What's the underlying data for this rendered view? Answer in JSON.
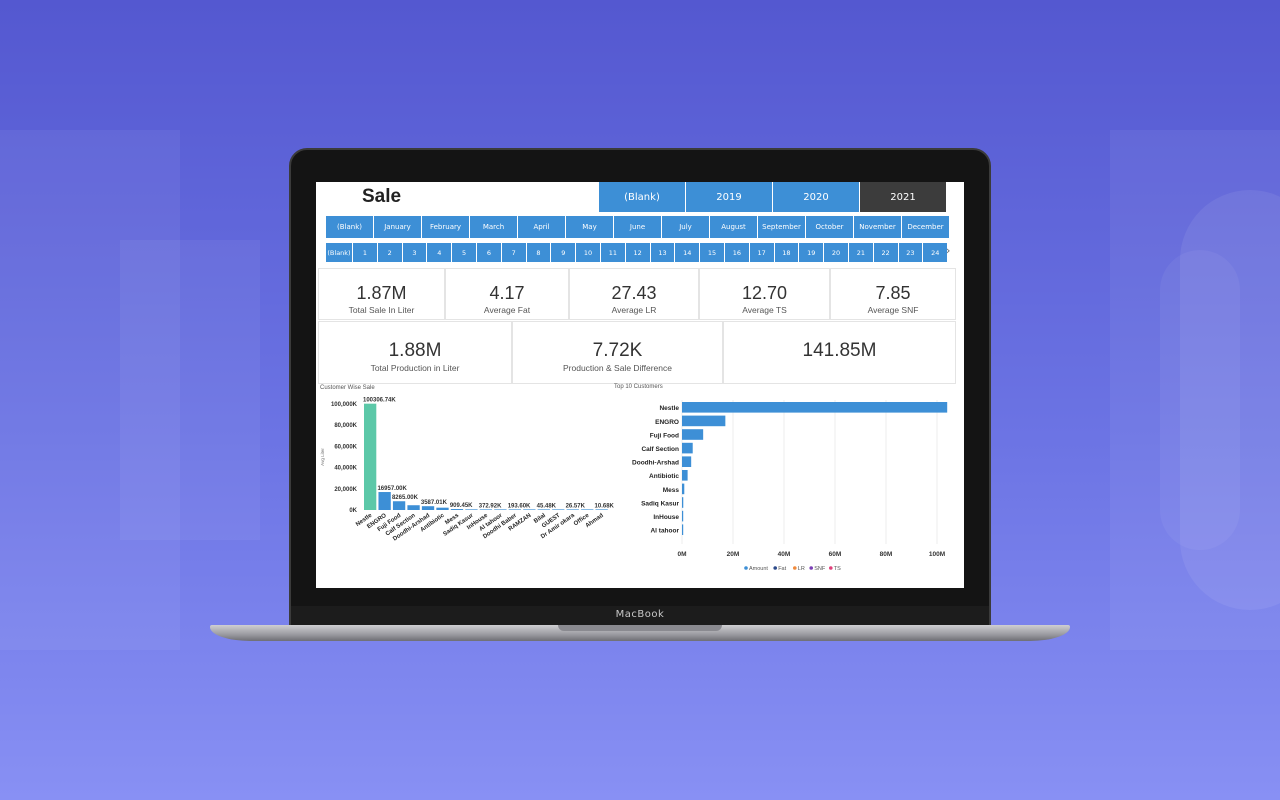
{
  "device": {
    "brand": "MacBook"
  },
  "dashboard": {
    "title": "Sale",
    "years": [
      "(Blank)",
      "2019",
      "2020",
      "2021"
    ],
    "active_year": "2021",
    "months": [
      "(Blank)",
      "January",
      "February",
      "March",
      "April",
      "May",
      "June",
      "July",
      "August",
      "September",
      "October",
      "November",
      "December"
    ],
    "days": [
      "(Blank)",
      "1",
      "2",
      "3",
      "4",
      "5",
      "6",
      "7",
      "8",
      "9",
      "10",
      "11",
      "12",
      "13",
      "14",
      "15",
      "16",
      "17",
      "18",
      "19",
      "20",
      "21",
      "22",
      "23",
      "24"
    ],
    "kpis_top": [
      {
        "value": "1.87M",
        "label": "Total Sale In Liter"
      },
      {
        "value": "4.17",
        "label": "Average Fat"
      },
      {
        "value": "27.43",
        "label": "Average LR"
      },
      {
        "value": "12.70",
        "label": "Average TS"
      },
      {
        "value": "7.85",
        "label": "Average SNF"
      }
    ],
    "kpis_bottom": [
      {
        "value": "1.88M",
        "label": "Total Production in Liter"
      },
      {
        "value": "7.72K",
        "label": "Production & Sale Difference"
      },
      {
        "value": "141.85M",
        "label": ""
      }
    ]
  },
  "chart_data": [
    {
      "type": "bar",
      "title": "Customer Wise Sale",
      "ylabel": "Avg Liter",
      "ylim": [
        0,
        100000
      ],
      "yticks": [
        "0K",
        "20,000K",
        "40,000K",
        "60,000K",
        "80,000K",
        "100,000K"
      ],
      "categories": [
        "Nestle",
        "ENGRO",
        "Fuji Food",
        "Calf Section",
        "Doodhi-Arshad",
        "Antibiotic",
        "Mess",
        "Sadiq Kasur",
        "InHouse",
        "Al tahoor",
        "Doodhi Baber",
        "RAMZAN",
        "Bilal",
        "GUEST",
        "Dr Amir okara",
        "Office",
        "Ahmad"
      ],
      "values": [
        100306.74,
        16957.0,
        8265.0,
        4500,
        3587.01,
        2200,
        909.45,
        600,
        372.92,
        300,
        193.6,
        100,
        45.48,
        40,
        26.57,
        15,
        10.68
      ],
      "data_labels": [
        "100306.74K",
        "16957.00K",
        "8265.00K",
        "",
        "3587.01K",
        "",
        "909.45K",
        "",
        "372.92K",
        "",
        "193.60K",
        "",
        "45.48K",
        "",
        "26.57K",
        "",
        "10.68K"
      ],
      "colors": [
        "#5cc8a8",
        "#3d8fd6"
      ]
    },
    {
      "type": "bar",
      "orientation": "horizontal",
      "title": "Top 10 Customers",
      "categories": [
        "Nestle",
        "ENGRO",
        "Fuji Food",
        "Calf Section",
        "Doodhi-Arshad",
        "Antibiotic",
        "Mess",
        "Sadiq Kasur",
        "InHouse",
        "Al tahoor"
      ],
      "values": [
        104,
        17,
        8.3,
        4.2,
        3.6,
        2.2,
        0.9,
        0.5,
        0.4,
        0.3
      ],
      "xticks": [
        "0M",
        "20M",
        "40M",
        "60M",
        "80M",
        "100M"
      ],
      "xlim": [
        0,
        100
      ],
      "legend": [
        "Amount",
        "Fat",
        "LR",
        "SNF",
        "TS"
      ],
      "legend_colors": [
        "#3d8fd6",
        "#2c4a8a",
        "#f08a3c",
        "#7b3fb5",
        "#e0407a"
      ],
      "legend_placement": "bottom",
      "color": "#3d8fd6"
    }
  ]
}
